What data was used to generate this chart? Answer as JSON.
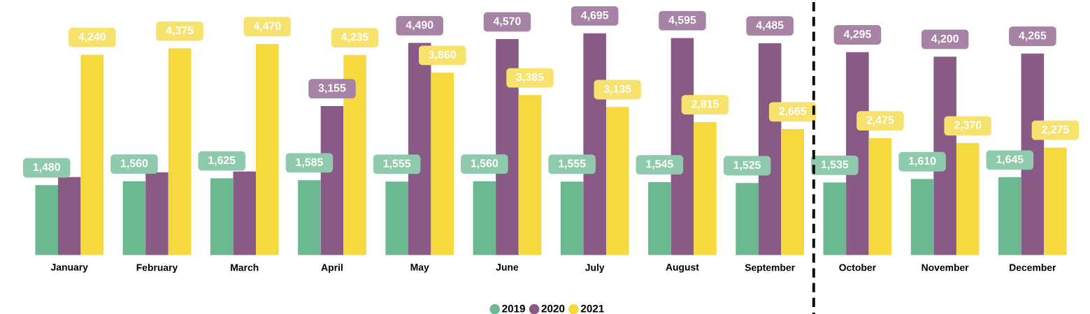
{
  "chart_data": {
    "type": "bar",
    "categories": [
      "January",
      "February",
      "March",
      "April",
      "May",
      "June",
      "July",
      "August",
      "September",
      "October",
      "November",
      "December"
    ],
    "series": [
      {
        "name": "2019",
        "color": "#6bb891",
        "values": [
          1480,
          1560,
          1625,
          1585,
          1555,
          1560,
          1555,
          1545,
          1525,
          1535,
          1610,
          1645
        ],
        "value_labels": [
          "1,480",
          "1,560",
          "1,625",
          "1,585",
          "1,555",
          "1,560",
          "1,555",
          "1,545",
          "1,525",
          "1,535",
          "1,610",
          "1,645"
        ]
      },
      {
        "name": "2020",
        "color": "#8a5a87",
        "values": [
          1650,
          1750,
          1770,
          3155,
          4490,
          4570,
          4695,
          4595,
          4485,
          4295,
          4200,
          4265
        ],
        "value_labels": [
          null,
          null,
          null,
          "3,155",
          "4,490",
          "4,570",
          "4,695",
          "4,595",
          "4,485",
          "4,295",
          "4,200",
          "4,265"
        ]
      },
      {
        "name": "2021",
        "color": "#f6d93e",
        "values": [
          4240,
          4375,
          4470,
          4235,
          3860,
          3385,
          3135,
          2815,
          2665,
          2475,
          2370,
          2275
        ],
        "value_labels": [
          "4,240",
          "4,375",
          "4,470",
          "4,235",
          "3,860",
          "3,385",
          "3,135",
          "2,815",
          "2,665",
          "2,475",
          "2,370",
          "2,275"
        ]
      }
    ],
    "legend": "bottom"
  }
}
